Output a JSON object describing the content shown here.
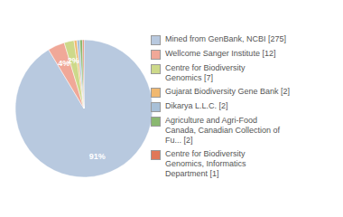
{
  "chart_data": {
    "type": "pie",
    "categories": [
      "Mined from GenBank, NCBI [275]",
      "Wellcome Sanger Institute [12]",
      "Centre for Biodiversity\nGenomics [7]",
      "Gujarat Biodiversity Gene Bank [2]",
      "Dikarya L.L.C. [2]",
      "Agriculture and Agri-Food\nCanada, Canadian Collection of\nFu... [2]",
      "Centre for Biodiversity\nGenomics, Informatics\nDepartment [1]"
    ],
    "values": [
      91.36,
      3.99,
      2.33,
      0.66,
      0.66,
      0.66,
      0.33
    ],
    "value_labels": [
      "91%",
      "4%",
      "2%",
      null,
      null,
      null,
      null
    ],
    "colors": [
      "#b8c9df",
      "#f0a898",
      "#cdd98a",
      "#f0b870",
      "#a8c0d8",
      "#8ab870",
      "#e07858"
    ],
    "data_labels": true,
    "legend": "right"
  }
}
